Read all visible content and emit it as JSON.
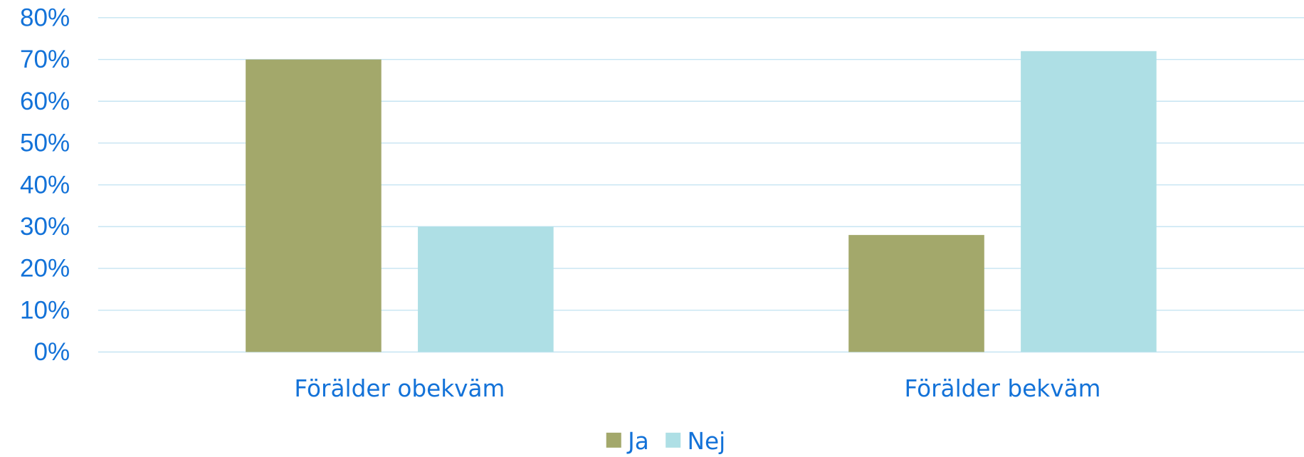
{
  "chart_data": {
    "type": "bar",
    "categories": [
      "Förälder obekväm",
      "Förälder bekväm"
    ],
    "series": [
      {
        "name": "Ja",
        "color": "#a3a86b",
        "values": [
          70,
          28
        ]
      },
      {
        "name": "Nej",
        "color": "#aedfe5",
        "values": [
          30,
          72
        ]
      }
    ],
    "ylim": [
      0,
      80
    ],
    "yticks": [
      {
        "value": 0,
        "label": "0%"
      },
      {
        "value": 10,
        "label": "10%"
      },
      {
        "value": 20,
        "label": "20%"
      },
      {
        "value": 30,
        "label": "30%"
      },
      {
        "value": 40,
        "label": "40%"
      },
      {
        "value": 50,
        "label": "50%"
      },
      {
        "value": 60,
        "label": "60%"
      },
      {
        "value": 70,
        "label": "70%"
      },
      {
        "value": 80,
        "label": "80%"
      }
    ],
    "grid": true,
    "legend": "bottom"
  }
}
